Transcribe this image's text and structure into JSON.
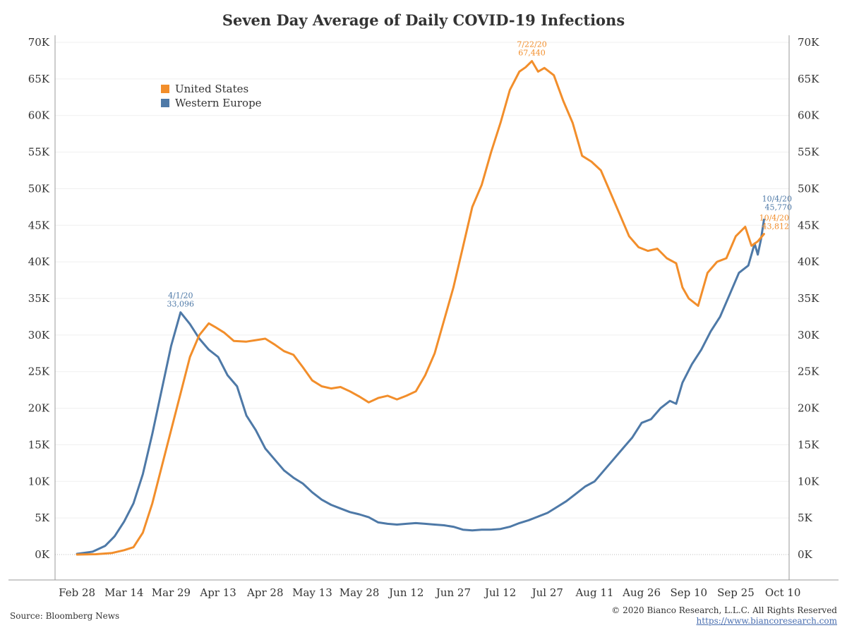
{
  "title": "Seven Day Average of Daily COVID-19 Infections",
  "source": "Source: Bloomberg News",
  "copyright": "© 2020 Bianco Research, L.L.C. All Rights Reserved",
  "url": "https://www.biancoresearch.com",
  "colors": {
    "us": "#f28e2b",
    "we": "#4e79a7",
    "axis": "#999999",
    "grid": "#efefef",
    "text": "#333333"
  },
  "chart_data": {
    "type": "line",
    "title": "Seven Day Average of Daily COVID-19 Infections",
    "xlabel": "",
    "ylabel": "",
    "xlim": [
      "2020-02-21",
      "2020-10-12"
    ],
    "ylim": [
      0,
      70000
    ],
    "x_ticks": [
      "Feb 28",
      "Mar 14",
      "Mar 29",
      "Apr 13",
      "Apr 28",
      "May 13",
      "May 28",
      "Jun 12",
      "Jun 27",
      "Jul 12",
      "Jul 27",
      "Aug 11",
      "Aug 26",
      "Sep 10",
      "Sep 25",
      "Oct 10"
    ],
    "x_tick_dates": [
      "2020-02-28",
      "2020-03-14",
      "2020-03-29",
      "2020-04-13",
      "2020-04-28",
      "2020-05-13",
      "2020-05-28",
      "2020-06-12",
      "2020-06-27",
      "2020-07-12",
      "2020-07-27",
      "2020-08-11",
      "2020-08-26",
      "2020-09-10",
      "2020-09-25",
      "2020-10-10"
    ],
    "y_ticks": [
      0,
      5000,
      10000,
      15000,
      20000,
      25000,
      30000,
      35000,
      40000,
      45000,
      50000,
      55000,
      60000,
      65000,
      70000
    ],
    "y_tick_labels": [
      "0K",
      "5K",
      "10K",
      "15K",
      "20K",
      "25K",
      "30K",
      "35K",
      "40K",
      "45K",
      "50K",
      "55K",
      "60K",
      "65K",
      "70K"
    ],
    "grid": true,
    "legend_position": "top-left",
    "series": [
      {
        "name": "United States",
        "color": "#f28e2b",
        "points": [
          [
            "2020-02-28",
            0
          ],
          [
            "2020-03-05",
            50
          ],
          [
            "2020-03-10",
            200
          ],
          [
            "2020-03-14",
            600
          ],
          [
            "2020-03-17",
            1000
          ],
          [
            "2020-03-20",
            3000
          ],
          [
            "2020-03-23",
            7000
          ],
          [
            "2020-03-26",
            12000
          ],
          [
            "2020-03-29",
            17000
          ],
          [
            "2020-04-01",
            22000
          ],
          [
            "2020-04-04",
            27000
          ],
          [
            "2020-04-07",
            30000
          ],
          [
            "2020-04-10",
            31600
          ],
          [
            "2020-04-12",
            31100
          ],
          [
            "2020-04-15",
            30300
          ],
          [
            "2020-04-18",
            29200
          ],
          [
            "2020-04-22",
            29100
          ],
          [
            "2020-04-25",
            29300
          ],
          [
            "2020-04-28",
            29500
          ],
          [
            "2020-05-01",
            28700
          ],
          [
            "2020-05-04",
            27800
          ],
          [
            "2020-05-07",
            27300
          ],
          [
            "2020-05-10",
            25600
          ],
          [
            "2020-05-13",
            23800
          ],
          [
            "2020-05-16",
            23000
          ],
          [
            "2020-05-19",
            22700
          ],
          [
            "2020-05-22",
            22900
          ],
          [
            "2020-05-25",
            22300
          ],
          [
            "2020-05-28",
            21600
          ],
          [
            "2020-05-31",
            20800
          ],
          [
            "2020-06-03",
            21400
          ],
          [
            "2020-06-06",
            21700
          ],
          [
            "2020-06-09",
            21200
          ],
          [
            "2020-06-12",
            21700
          ],
          [
            "2020-06-15",
            22300
          ],
          [
            "2020-06-18",
            24500
          ],
          [
            "2020-06-21",
            27500
          ],
          [
            "2020-06-24",
            32000
          ],
          [
            "2020-06-27",
            36500
          ],
          [
            "2020-06-30",
            42000
          ],
          [
            "2020-07-03",
            47500
          ],
          [
            "2020-07-06",
            50500
          ],
          [
            "2020-07-09",
            55000
          ],
          [
            "2020-07-12",
            59000
          ],
          [
            "2020-07-15",
            63500
          ],
          [
            "2020-07-18",
            66000
          ],
          [
            "2020-07-20",
            66600
          ],
          [
            "2020-07-22",
            67440
          ],
          [
            "2020-07-24",
            66000
          ],
          [
            "2020-07-26",
            66500
          ],
          [
            "2020-07-29",
            65500
          ],
          [
            "2020-08-01",
            62000
          ],
          [
            "2020-08-04",
            59000
          ],
          [
            "2020-08-07",
            54500
          ],
          [
            "2020-08-10",
            53700
          ],
          [
            "2020-08-13",
            52500
          ],
          [
            "2020-08-16",
            49500
          ],
          [
            "2020-08-19",
            46500
          ],
          [
            "2020-08-22",
            43500
          ],
          [
            "2020-08-25",
            42000
          ],
          [
            "2020-08-28",
            41500
          ],
          [
            "2020-08-31",
            41800
          ],
          [
            "2020-09-03",
            40500
          ],
          [
            "2020-09-06",
            39800
          ],
          [
            "2020-09-08",
            36500
          ],
          [
            "2020-09-10",
            35000
          ],
          [
            "2020-09-13",
            34000
          ],
          [
            "2020-09-16",
            38500
          ],
          [
            "2020-09-19",
            40000
          ],
          [
            "2020-09-22",
            40500
          ],
          [
            "2020-09-25",
            43500
          ],
          [
            "2020-09-28",
            44800
          ],
          [
            "2020-09-30",
            42200
          ],
          [
            "2020-10-02",
            42800
          ],
          [
            "2020-10-04",
            43812
          ]
        ]
      },
      {
        "name": "Western Europe",
        "color": "#4e79a7",
        "points": [
          [
            "2020-02-28",
            100
          ],
          [
            "2020-03-04",
            400
          ],
          [
            "2020-03-08",
            1200
          ],
          [
            "2020-03-11",
            2500
          ],
          [
            "2020-03-14",
            4500
          ],
          [
            "2020-03-17",
            7000
          ],
          [
            "2020-03-20",
            11000
          ],
          [
            "2020-03-23",
            16500
          ],
          [
            "2020-03-26",
            22500
          ],
          [
            "2020-03-29",
            28500
          ],
          [
            "2020-04-01",
            33096
          ],
          [
            "2020-04-04",
            31500
          ],
          [
            "2020-04-07",
            29500
          ],
          [
            "2020-04-10",
            28000
          ],
          [
            "2020-04-13",
            27000
          ],
          [
            "2020-04-16",
            24500
          ],
          [
            "2020-04-19",
            23000
          ],
          [
            "2020-04-22",
            19000
          ],
          [
            "2020-04-25",
            17000
          ],
          [
            "2020-04-28",
            14500
          ],
          [
            "2020-05-01",
            13000
          ],
          [
            "2020-05-04",
            11500
          ],
          [
            "2020-05-07",
            10500
          ],
          [
            "2020-05-10",
            9700
          ],
          [
            "2020-05-13",
            8500
          ],
          [
            "2020-05-16",
            7500
          ],
          [
            "2020-05-19",
            6800
          ],
          [
            "2020-05-22",
            6300
          ],
          [
            "2020-05-25",
            5800
          ],
          [
            "2020-05-28",
            5500
          ],
          [
            "2020-05-31",
            5100
          ],
          [
            "2020-06-03",
            4400
          ],
          [
            "2020-06-06",
            4200
          ],
          [
            "2020-06-09",
            4100
          ],
          [
            "2020-06-12",
            4200
          ],
          [
            "2020-06-15",
            4300
          ],
          [
            "2020-06-18",
            4200
          ],
          [
            "2020-06-21",
            4100
          ],
          [
            "2020-06-24",
            4000
          ],
          [
            "2020-06-27",
            3800
          ],
          [
            "2020-06-30",
            3400
          ],
          [
            "2020-07-03",
            3300
          ],
          [
            "2020-07-06",
            3400
          ],
          [
            "2020-07-09",
            3400
          ],
          [
            "2020-07-12",
            3500
          ],
          [
            "2020-07-15",
            3800
          ],
          [
            "2020-07-18",
            4300
          ],
          [
            "2020-07-21",
            4700
          ],
          [
            "2020-07-24",
            5200
          ],
          [
            "2020-07-27",
            5700
          ],
          [
            "2020-07-30",
            6500
          ],
          [
            "2020-08-02",
            7300
          ],
          [
            "2020-08-05",
            8300
          ],
          [
            "2020-08-08",
            9300
          ],
          [
            "2020-08-11",
            10000
          ],
          [
            "2020-08-14",
            11500
          ],
          [
            "2020-08-17",
            13000
          ],
          [
            "2020-08-20",
            14500
          ],
          [
            "2020-08-23",
            16000
          ],
          [
            "2020-08-26",
            18000
          ],
          [
            "2020-08-29",
            18500
          ],
          [
            "2020-09-01",
            20000
          ],
          [
            "2020-09-04",
            21000
          ],
          [
            "2020-09-06",
            20600
          ],
          [
            "2020-09-08",
            23500
          ],
          [
            "2020-09-11",
            26000
          ],
          [
            "2020-09-14",
            28000
          ],
          [
            "2020-09-17",
            30500
          ],
          [
            "2020-09-20",
            32500
          ],
          [
            "2020-09-23",
            35500
          ],
          [
            "2020-09-26",
            38500
          ],
          [
            "2020-09-29",
            39500
          ],
          [
            "2020-10-01",
            42500
          ],
          [
            "2020-10-02",
            41000
          ],
          [
            "2020-10-03",
            43000
          ],
          [
            "2020-10-04",
            45770
          ]
        ]
      }
    ],
    "annotations": [
      {
        "series": "Western Europe",
        "date_label": "4/1/20",
        "value_label": "33,096",
        "x": "2020-04-01",
        "y": 33096,
        "anchor": "top"
      },
      {
        "series": "United States",
        "date_label": "7/22/20",
        "value_label": "67,440",
        "x": "2020-07-22",
        "y": 67440,
        "anchor": "top"
      },
      {
        "series": "Western Europe",
        "date_label": "10/4/20",
        "value_label": "45,770",
        "x": "2020-10-04",
        "y": 45770,
        "anchor": "right-top"
      },
      {
        "series": "United States",
        "date_label": "10/4/20",
        "value_label": "43,812",
        "x": "2020-10-04",
        "y": 43812,
        "anchor": "right-bottom"
      }
    ]
  }
}
